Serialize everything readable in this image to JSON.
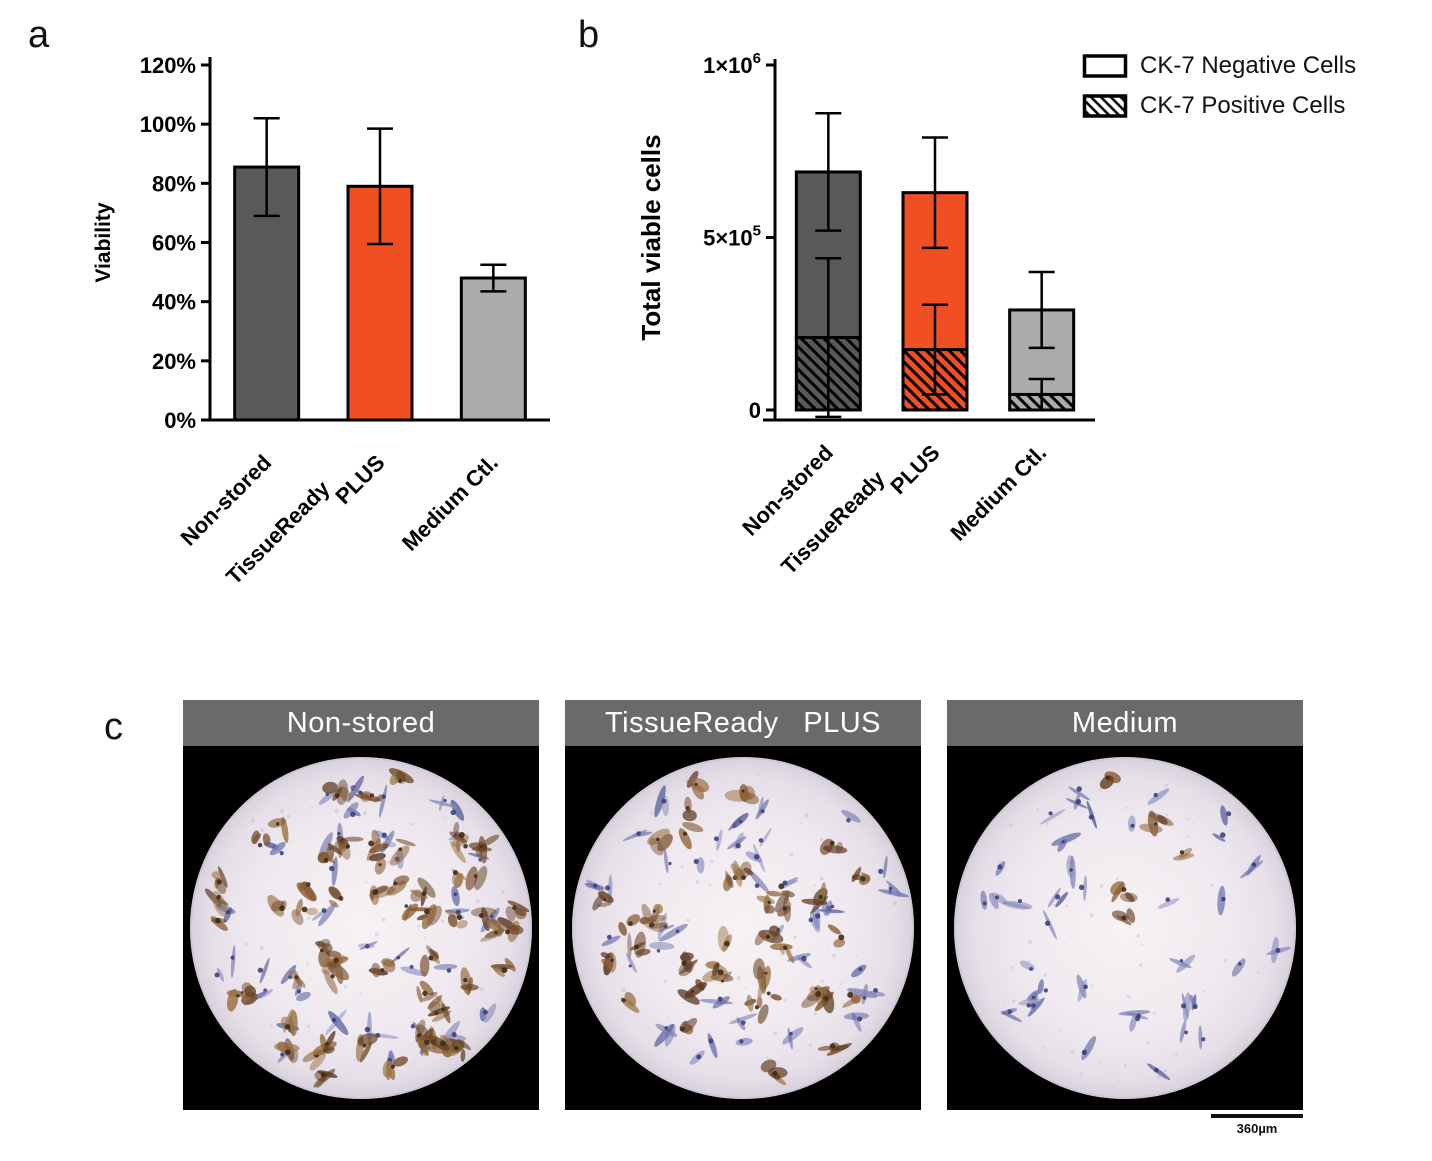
{
  "figure": {
    "panel_a_label": "a",
    "panel_b_label": "b",
    "panel_c_label": "c"
  },
  "legend": {
    "items": [
      {
        "label": "CK-7 Negative Cells",
        "swatch": "open"
      },
      {
        "label": "CK-7 Positive Cells",
        "swatch": "hatched"
      }
    ]
  },
  "chart_data": [
    {
      "id": "panel-a-viability",
      "type": "bar",
      "title": "",
      "xlabel": "",
      "ylabel": "Viability",
      "ylim": [
        0,
        120
      ],
      "yticks": [
        0,
        20,
        40,
        60,
        80,
        100,
        120
      ],
      "ytick_format": "percent",
      "grid": false,
      "categories": [
        [
          "Non-stored"
        ],
        [
          "TissueReady",
          "PLUS"
        ],
        [
          "Medium Ctl."
        ]
      ],
      "values": [
        85.5,
        79,
        48
      ],
      "errors": [
        16.5,
        19.5,
        4.5
      ],
      "bar_colors": [
        "#595959",
        "#F04E23",
        "#ABABAB"
      ]
    },
    {
      "id": "panel-b-total-viable-cells",
      "type": "stacked-bar",
      "title": "",
      "xlabel": "",
      "ylabel": "Total viable cells",
      "ylim": [
        0,
        1000000
      ],
      "yticks": [
        {
          "value": 0,
          "label": "0"
        },
        {
          "value": 500000,
          "label": "5×10^5"
        },
        {
          "value": 1000000,
          "label": "1×10^6"
        }
      ],
      "grid": false,
      "legend_position": "top-right",
      "categories": [
        [
          "Non-stored"
        ],
        [
          "TissueReady",
          "PLUS"
        ],
        [
          "Medium Ctl."
        ]
      ],
      "series": [
        {
          "name": "CK-7 Positive Cells",
          "pattern": "hatched",
          "values": [
            210000,
            175000,
            45000
          ],
          "errors": [
            230000,
            130000,
            45000
          ]
        },
        {
          "name": "CK-7 Negative Cells",
          "pattern": "solid",
          "values": [
            480000,
            455000,
            245000
          ]
        }
      ],
      "totals": [
        690000,
        630000,
        290000
      ],
      "total_errors": [
        170000,
        160000,
        110000
      ],
      "bar_colors": [
        "#595959",
        "#F04E23",
        "#ABABAB"
      ]
    }
  ],
  "panel_c": {
    "images": [
      {
        "title": "Non-stored",
        "approx_cells": {
          "brown": 60,
          "blue": 45
        },
        "seed": 7
      },
      {
        "title": "TissueReady PLUS",
        "approx_cells": {
          "brown": 38,
          "blue": 42
        },
        "seed": 13
      },
      {
        "title": "Medium",
        "approx_cells": {
          "brown": 5,
          "blue": 38
        },
        "seed": 21
      }
    ],
    "scale_bar_label": "360µm"
  }
}
